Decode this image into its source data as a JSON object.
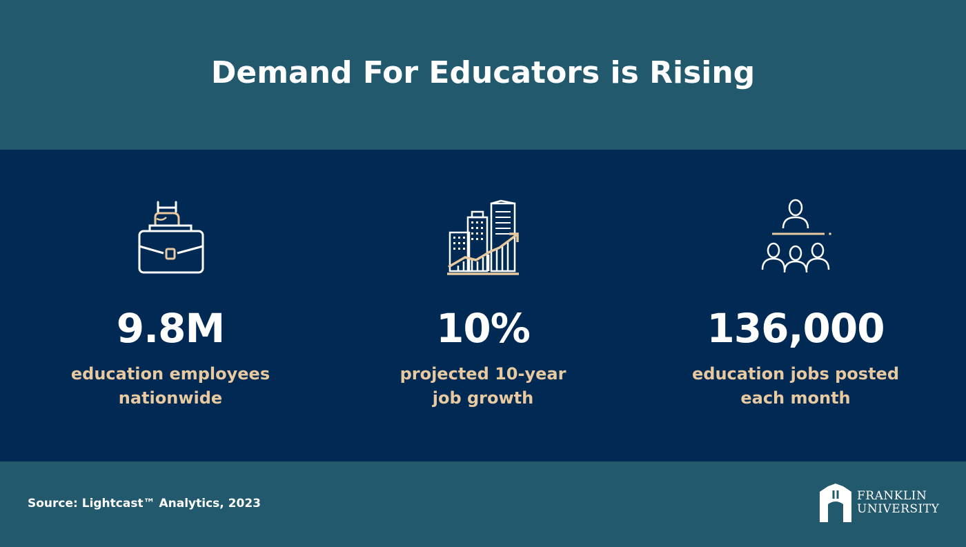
{
  "header": {
    "title": "Demand For Educators is Rising"
  },
  "stats": [
    {
      "icon": "briefcase-hand-icon",
      "value": "9.8M",
      "desc_line1": "education employees",
      "desc_line2": "nationwide"
    },
    {
      "icon": "city-growth-chart-icon",
      "value": "10%",
      "desc_line1": "projected 10-year",
      "desc_line2": "job growth"
    },
    {
      "icon": "teacher-students-icon",
      "value": "136,000",
      "desc_line1": "education jobs posted",
      "desc_line2": "each month"
    }
  ],
  "footer": {
    "source": "Source: Lightcast™ Analytics, 2023",
    "logo_line1": "FRANKLIN",
    "logo_line2": "UNIVERSITY"
  },
  "colors": {
    "header_bg": "#23596d",
    "band_bg": "#002a54",
    "accent_tan": "#e8c9a0",
    "text_white": "#ffffff"
  }
}
